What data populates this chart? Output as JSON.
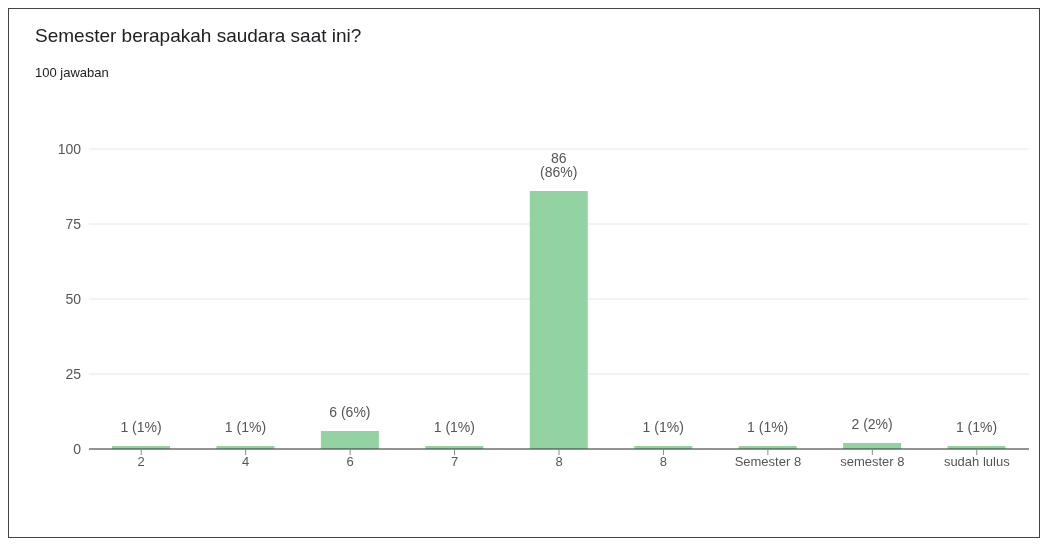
{
  "chart_data": {
    "type": "bar",
    "title": "Semester berapakah saudara saat ini?",
    "subtitle": "100 jawaban",
    "categories": [
      "2",
      "4",
      "6",
      "7",
      "8",
      "8",
      "Semester 8",
      "semester 8",
      "sudah lulus"
    ],
    "values": [
      1,
      1,
      6,
      1,
      86,
      1,
      1,
      2,
      1
    ],
    "value_labels": [
      "1 (1%)",
      "1 (1%)",
      "6 (6%)",
      "1 (1%)",
      "86 (86%)",
      "1 (1%)",
      "1 (1%)",
      "2 (2%)",
      "1 (1%)"
    ],
    "color": "#93d3a2",
    "ylim": [
      0,
      100
    ],
    "yticks": [
      0,
      25,
      50,
      75,
      100
    ],
    "grid": "y"
  }
}
